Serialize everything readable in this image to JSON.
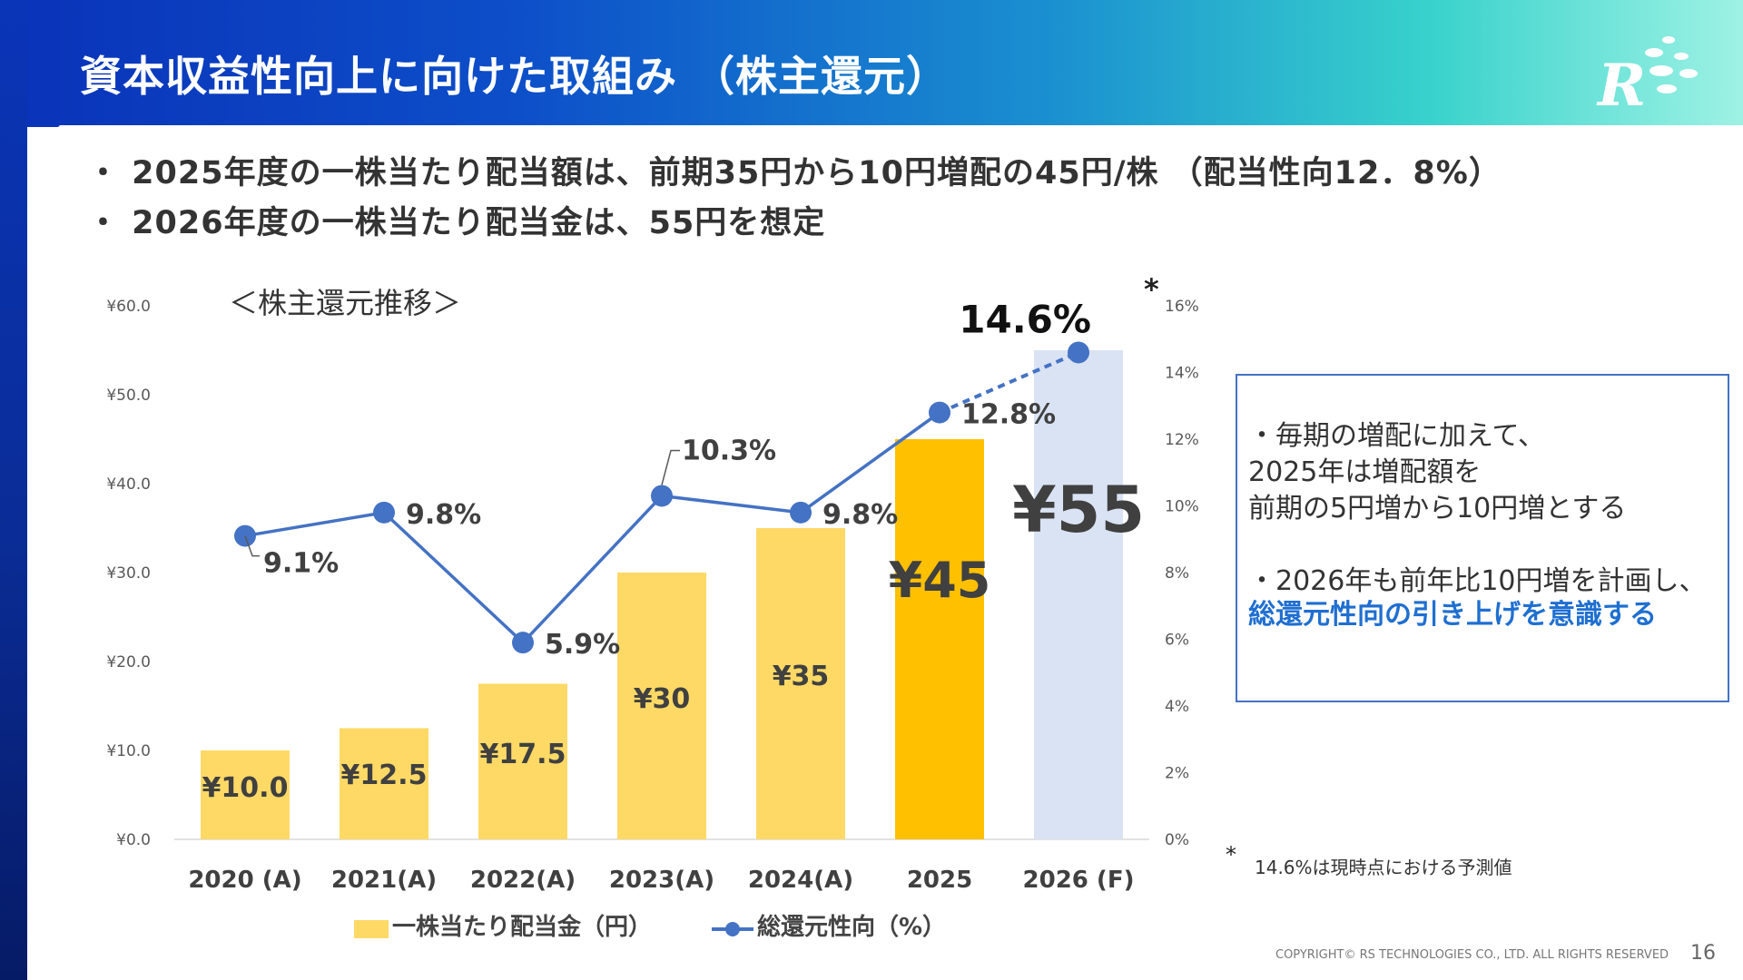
{
  "slide": {
    "title": "資本収益性向上に向けた取組み （株主還元）",
    "bullets": [
      "・ 2025年度の一株当たり配当額は、前期35円から10円増配の45円/株 （配当性向12．8%）",
      "・ 2026年度の一株当たり配当金は、55円を想定"
    ],
    "callout": {
      "line1": "・毎期の増配に加えて、",
      "line2": "2025年は増配額を",
      "line3": "前期の5円増から10円増とする",
      "line4": "・2026年も前年比10円増を計画し、",
      "line5": "総還元性向の引き上げを意識する"
    },
    "footnote_mark": "*",
    "footnote_text": "14.6%は現時点における予測値",
    "copyright": "COPYRIGHT© RS TECHNOLOGIES CO., LTD. ALL RIGHTS RESERVED",
    "page_number": "16",
    "logo_letter": "R",
    "colors": {
      "bar": "#ffd966",
      "bar_2025": "#ffc000",
      "bar_forecast": "#dae3f3",
      "line": "#4472c4",
      "callout_border": "#4472c4",
      "highlight_text": "#1f6fd1"
    }
  },
  "chart_data": {
    "type": "bar",
    "title": "＜株主還元推移＞",
    "categories": [
      "2020 (A)",
      "2021(A)",
      "2022(A)",
      "2023(A)",
      "2024(A)",
      "2025",
      "2026 (F)"
    ],
    "series": [
      {
        "name": "一株当たり配当金（円）",
        "type": "bar",
        "axis": "left",
        "values": [
          10.0,
          12.5,
          17.5,
          30,
          35,
          45,
          55
        ],
        "labels": [
          "¥10.0",
          "¥12.5",
          "¥17.5",
          "¥30",
          "¥35",
          "¥45",
          "¥55"
        ]
      },
      {
        "name": "総還元性向（%）",
        "type": "line",
        "axis": "right",
        "values": [
          9.1,
          9.8,
          5.9,
          10.3,
          9.8,
          12.8,
          14.6
        ],
        "labels": [
          "9.1%",
          "9.8%",
          "5.9%",
          "10.3%",
          "9.8%",
          "12.8%",
          "14.6%"
        ],
        "forecast_from_index": 5
      }
    ],
    "left_axis": {
      "ylim": [
        0,
        60
      ],
      "ticks": [
        "¥0.0",
        "¥10.0",
        "¥20.0",
        "¥30.0",
        "¥40.0",
        "¥50.0",
        "¥60.0"
      ]
    },
    "right_axis": {
      "ylim": [
        0,
        16
      ],
      "ticks": [
        "0%",
        "2%",
        "4%",
        "6%",
        "8%",
        "10%",
        "12%",
        "14%",
        "16%"
      ]
    },
    "forecast_mark": "*",
    "legend": "bottom",
    "grid": false
  }
}
